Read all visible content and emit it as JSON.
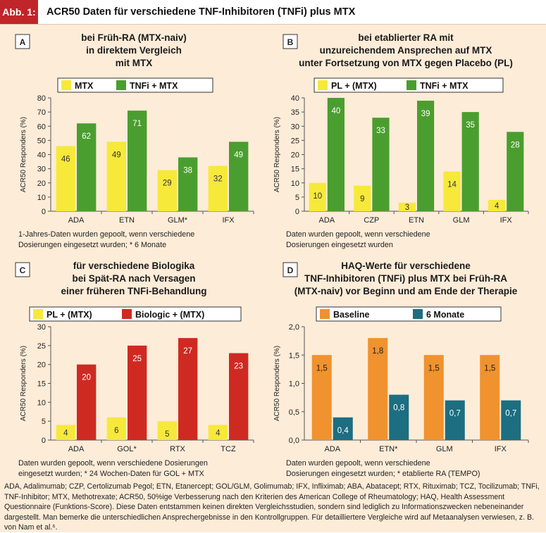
{
  "header": {
    "label": "Abb. 1:",
    "title": "ACR50 Daten für verschiedene TNF-Inhibitoren (TNFi) plus MTX"
  },
  "colors": {
    "accent_red": "#c0252a",
    "yellow": "#f6e93a",
    "green": "#4a9e2f",
    "red": "#cf2a22",
    "orange": "#f0922e",
    "teal": "#1c6e80",
    "panel_bg": "#fdecd8"
  },
  "footnote": "ADA, Adalimumab; CZP, Certolizumab Pegol; ETN, Etanercept; GOL/GLM, Golimumab; IFX, Infliximab; ABA, Abatacept; RTX, Rituximab; TCZ, Tocilizumab; TNFi, TNF-Inhibitor; MTX, Methotrexate; ACR50, 50%ige Verbesserung nach den Kriterien des American College of Rheumatology; HAQ, Health Assessment Questionnaire (Funktions-Score). Diese Daten entstammen keinen direkten Vergleichsstudien, sondern sind lediglich zu Informationszwecken nebeneinander dargestellt. Man bemerke die unterschiedlichen Ansprechergebnisse in den Kontrollgruppen. Für detailliertere Vergleiche wird auf Metaanalysen verwiesen, z. B. von Nam et al.⁶.",
  "chart_data": [
    {
      "panel": "A",
      "type": "bar",
      "title_lines": [
        "bei Früh-RA (MTX-naiv)",
        "in direktem Vergleich",
        "mit MTX"
      ],
      "ylabel": "ACR50 Responders (%)",
      "ylim": [
        0,
        80
      ],
      "yticks": [
        "0",
        "10",
        "20",
        "30",
        "40",
        "50",
        "60",
        "70",
        "80"
      ],
      "categories": [
        "ADA",
        "ETN",
        "GLM*",
        "IFX"
      ],
      "series": [
        {
          "name": "MTX",
          "color": "#f6e93a",
          "values": [
            46,
            49,
            29,
            32
          ]
        },
        {
          "name": "TNFi + MTX",
          "color": "#4a9e2f",
          "values": [
            62,
            71,
            38,
            49
          ]
        }
      ],
      "value_labels": [
        [
          "46",
          "49",
          "29",
          "32"
        ],
        [
          "62",
          "71",
          "38",
          "49"
        ]
      ],
      "note_lines": [
        "1-Jahres-Daten wurden gepoolt, wenn verschiedene",
        "Dosierungen eingesetzt wurden; * 6 Monate"
      ]
    },
    {
      "panel": "B",
      "type": "bar",
      "title_lines": [
        "bei etablierter RA mit",
        "unzureichendem Ansprechen auf MTX",
        "unter Fortsetzung von MTX gegen Placebo (PL)"
      ],
      "ylabel": "ACR50 Responders (%)",
      "ylim": [
        0,
        40
      ],
      "yticks": [
        "0",
        "5",
        "10",
        "15",
        "20",
        "25",
        "30",
        "35",
        "40"
      ],
      "categories": [
        "ADA",
        "CZP",
        "ETN",
        "GLM",
        "IFX"
      ],
      "series": [
        {
          "name": "PL + (MTX)",
          "color": "#f6e93a",
          "values": [
            10,
            9,
            3,
            14,
            4
          ]
        },
        {
          "name": "TNFi + MTX",
          "color": "#4a9e2f",
          "values": [
            40,
            33,
            39,
            35,
            28
          ]
        }
      ],
      "value_labels": [
        [
          "10",
          "9",
          "3",
          "14",
          "4"
        ],
        [
          "40",
          "33",
          "39",
          "35",
          "28"
        ]
      ],
      "note_lines": [
        "Daten wurden gepoolt, wenn verschiedene",
        "Dosierungen eingesetzt wurden"
      ]
    },
    {
      "panel": "C",
      "type": "bar",
      "title_lines": [
        "für verschiedene Biologika",
        "bei Spät-RA nach Versagen",
        "einer früheren TNFi-Behandlung"
      ],
      "ylabel": "ACR50 Responders (%)",
      "ylim": [
        0,
        30
      ],
      "yticks": [
        "0",
        "5",
        "10",
        "15",
        "20",
        "25",
        "30"
      ],
      "categories": [
        "ADA",
        "GOL*",
        "RTX",
        "TCZ"
      ],
      "series": [
        {
          "name": "PL + (MTX)",
          "color": "#f6e93a",
          "values": [
            4,
            6,
            5,
            4
          ]
        },
        {
          "name": "Biologic + (MTX)",
          "color": "#cf2a22",
          "values": [
            20,
            25,
            27,
            23
          ]
        }
      ],
      "value_labels": [
        [
          "4",
          "6",
          "5",
          "4"
        ],
        [
          "20",
          "25",
          "27",
          "23"
        ]
      ],
      "note_lines": [
        "Daten wurden gepoolt, wenn verschiedene Dosierungen",
        "eingesetzt wurden; * 24 Wochen-Daten für GOL + MTX"
      ]
    },
    {
      "panel": "D",
      "type": "bar",
      "title_lines": [
        "HAQ-Werte für  verschiedene",
        "TNF-Inhibitoren (TNFi) plus MTX bei Früh-RA",
        "(MTX-naiv) vor Beginn und am Ende der Therapie"
      ],
      "ylabel": "ACR50 Responders (%)",
      "ylim": [
        0,
        2.0
      ],
      "yticks": [
        "0,0",
        "0,5",
        "1,0",
        "1,5",
        "2,0"
      ],
      "categories": [
        "ADA",
        "ETN*",
        "GLM",
        "IFX"
      ],
      "series": [
        {
          "name": "Baseline",
          "color": "#f0922e",
          "values": [
            1.5,
            1.8,
            1.5,
            1.5
          ]
        },
        {
          "name": "6 Monate",
          "color": "#1c6e80",
          "values": [
            0.4,
            0.8,
            0.7,
            0.7
          ]
        }
      ],
      "value_labels": [
        [
          "1,5",
          "1,8",
          "1,5",
          "1,5"
        ],
        [
          "0,4",
          "0,8",
          "0,7",
          "0,7"
        ]
      ],
      "note_lines": [
        "Daten wurden gepoolt, wenn verschiedene",
        "Dosierungen eingesetzt wurden; * etablierte RA (TEMPO)"
      ]
    }
  ]
}
